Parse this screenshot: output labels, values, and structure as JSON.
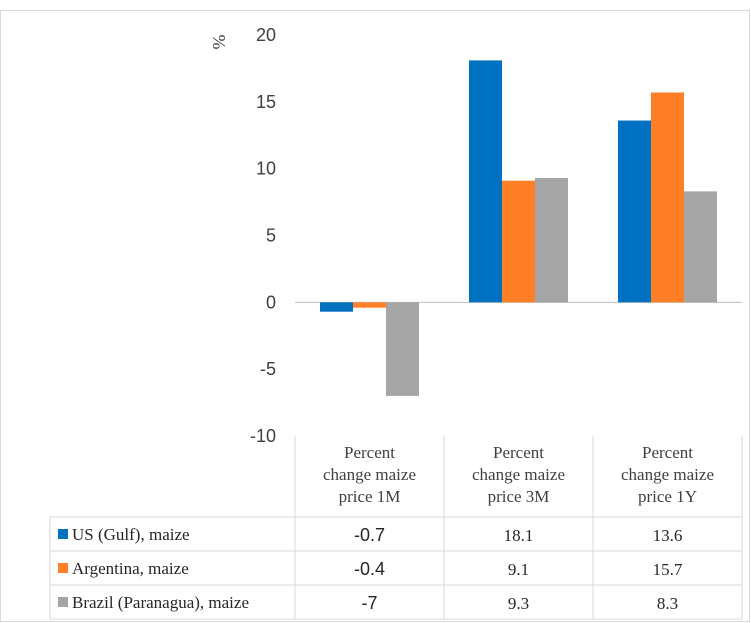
{
  "chart_data": {
    "type": "bar",
    "ylabel": "%",
    "ylim": [
      -10,
      20
    ],
    "yticks": [
      20,
      15,
      10,
      5,
      0,
      -5,
      -10
    ],
    "categories": [
      [
        "Percent",
        "change maize",
        "price 1M"
      ],
      [
        "Percent",
        "change maize",
        "price 3M"
      ],
      [
        "Percent",
        "change maize",
        "price 1Y"
      ]
    ],
    "series": [
      {
        "name": "US (Gulf), maize",
        "color": "#0070c0",
        "values": [
          -0.7,
          18.1,
          13.6
        ],
        "labels": [
          "-0.7",
          "18.1",
          "13.6"
        ]
      },
      {
        "name": "Argentina, maize",
        "color": "#ff7f27",
        "values": [
          -0.4,
          9.1,
          15.7
        ],
        "labels": [
          "-0.4",
          "9.1",
          "15.7"
        ]
      },
      {
        "name": "Brazil (Paranagua), maize",
        "color": "#a5a5a5",
        "values": [
          -7,
          9.3,
          8.3
        ],
        "labels": [
          "-7",
          "9.3",
          "8.3"
        ]
      }
    ],
    "grid": false,
    "legend": "data-table"
  }
}
